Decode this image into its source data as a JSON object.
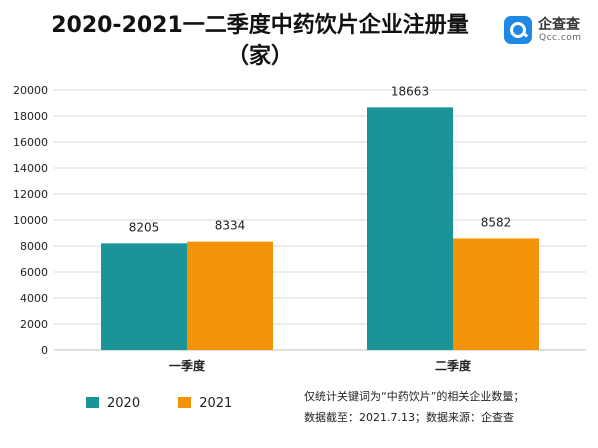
{
  "title": "2020-2021一二季度中药饮片企业注册量",
  "title_line2": "（家）",
  "logo": {
    "name": "企查查",
    "domain": "Qcc.com",
    "icon": "magnifier-icon"
  },
  "notes": [
    "仅统计关键词为“中药饮片”的相关企业数量；",
    "数据截至：2021.7.13；数据来源：企查查"
  ],
  "chart_data": {
    "type": "bar",
    "categories": [
      "一季度",
      "二季度"
    ],
    "series": [
      {
        "name": "2020",
        "values": [
          8205,
          18663
        ],
        "color": "#1a9496"
      },
      {
        "name": "2021",
        "values": [
          8334,
          8582
        ],
        "color": "#f39408"
      }
    ],
    "ylim": [
      0,
      20000
    ],
    "yticks": [
      "0",
      "2000",
      "4000",
      "6000",
      "8000",
      "10000",
      "12000",
      "14000",
      "16000",
      "18000",
      "20000"
    ],
    "grid": true,
    "legend": "bottom-left",
    "data_labels": true
  }
}
